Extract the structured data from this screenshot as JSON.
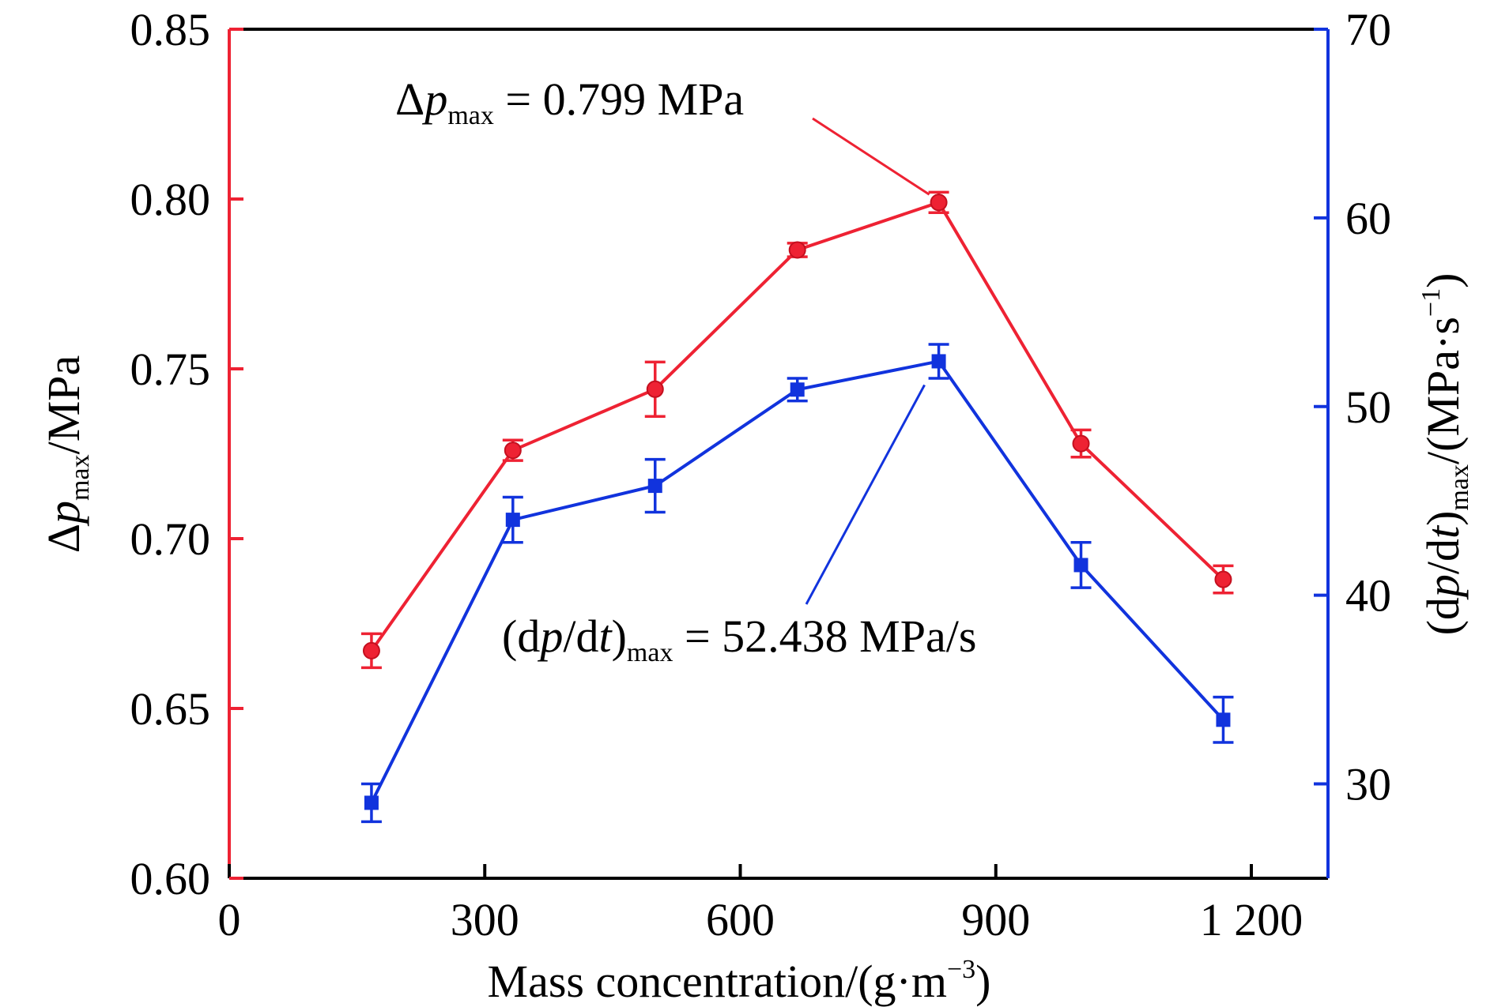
{
  "chart_data": {
    "type": "line",
    "title": "",
    "x": [
      167,
      333,
      500,
      667,
      833,
      1000,
      1167
    ],
    "xlabel": "Mass concentration/(g·m⁻³)",
    "xlim": [
      0,
      1290
    ],
    "xticks": [
      0,
      300,
      600,
      900,
      1200
    ],
    "xtick_labels": [
      "0",
      "300",
      "600",
      "900",
      "1 200"
    ],
    "ylabel_left": "Δp_max/MPa",
    "ylim_left": [
      0.6,
      0.85
    ],
    "yticks_left": [
      "0.60",
      "0.65",
      "0.70",
      "0.75",
      "0.80",
      "0.85"
    ],
    "ylabel_right": "(dp/dt)_max/(MPa·s⁻¹)",
    "ylim_right": [
      25,
      70
    ],
    "yticks_right": [
      "30",
      "40",
      "50",
      "60",
      "70"
    ],
    "grid": false,
    "legend": "none",
    "series": [
      {
        "axis": "left",
        "color": "#ee2233",
        "marker": "circle",
        "values": [
          0.667,
          0.726,
          0.744,
          0.785,
          0.799,
          0.728,
          0.688
        ],
        "errors": [
          0.005,
          0.003,
          0.008,
          0.002,
          0.003,
          0.004,
          0.004
        ]
      },
      {
        "axis": "right",
        "color": "#1133dd",
        "marker": "square",
        "values": [
          29.0,
          44.0,
          45.8,
          50.9,
          52.4,
          41.6,
          33.4
        ],
        "errors": [
          1.0,
          1.2,
          1.4,
          0.6,
          0.9,
          1.2,
          1.2
        ]
      }
    ],
    "annotations": [
      {
        "text_prefix": "Δ",
        "text_italic": "p",
        "text_sub": "max",
        "text_suffix": " = 0.799 MPa",
        "series": 0,
        "point": 4
      },
      {
        "text_prefix": "(d",
        "text_italic": "p",
        "text_mid": "/d",
        "text_italic2": "t",
        "text_mid2": ")",
        "text_sub": "max",
        "text_suffix": " = 52.438 MPa/s",
        "series": 1,
        "point": 4
      }
    ]
  },
  "axis_text": {
    "x_title": "Mass concentration/(g·m",
    "x_title_sup": "−3",
    "x_title_end": ")",
    "left_delta": "Δ",
    "left_p": "p",
    "left_sub": "max",
    "left_unit": "/MPa",
    "right_open": "(d",
    "right_p": "p",
    "right_slash": "/d",
    "right_t": "t",
    "right_close": ")",
    "right_sub": "max",
    "right_unit": "/(MPa·s",
    "right_sup": "−1",
    "right_end": ")"
  },
  "colors": {
    "left_axis": "#ee2233",
    "right_axis": "#1133dd",
    "frame": "#000000"
  }
}
